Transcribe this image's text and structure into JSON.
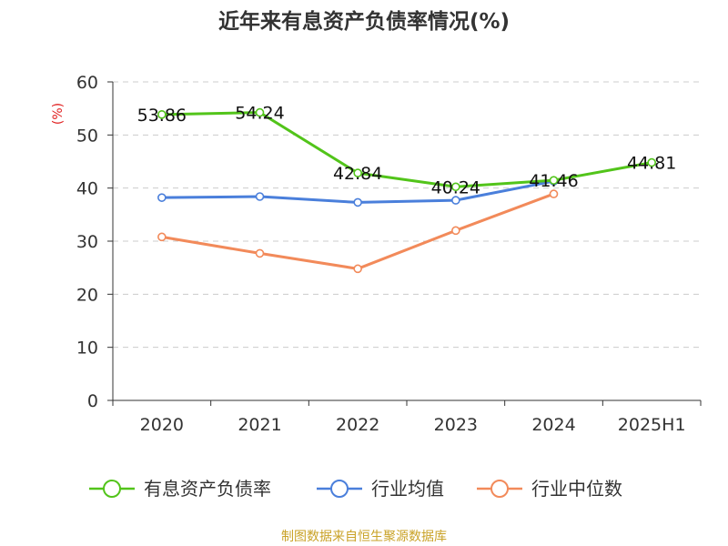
{
  "chart_data": {
    "type": "line",
    "title": "近年来有息资产负债率情况(%)",
    "ylabel": "(%)",
    "xlabel": "",
    "categories": [
      "2020",
      "2021",
      "2022",
      "2023",
      "2024",
      "2025H1"
    ],
    "ylim": [
      0,
      60
    ],
    "yticks": [
      0,
      10,
      20,
      30,
      40,
      50,
      60
    ],
    "grid": true,
    "legend_position": "bottom",
    "series": [
      {
        "name": "有息资产负债率",
        "color": "#52c41a",
        "values": [
          53.86,
          54.24,
          42.84,
          40.24,
          41.46,
          44.81
        ],
        "data_labels": [
          "53.86",
          "54.24",
          "42.84",
          "40.24",
          "41.46",
          "44.81"
        ]
      },
      {
        "name": "行业均值",
        "color": "#4a7fdb",
        "values": [
          38.2,
          38.4,
          37.3,
          37.7,
          41.3,
          null
        ]
      },
      {
        "name": "行业中位数",
        "color": "#f28a5a",
        "values": [
          30.8,
          27.7,
          24.8,
          32.0,
          38.9,
          null
        ]
      }
    ],
    "source": "制图数据来自恒生聚源数据库"
  }
}
